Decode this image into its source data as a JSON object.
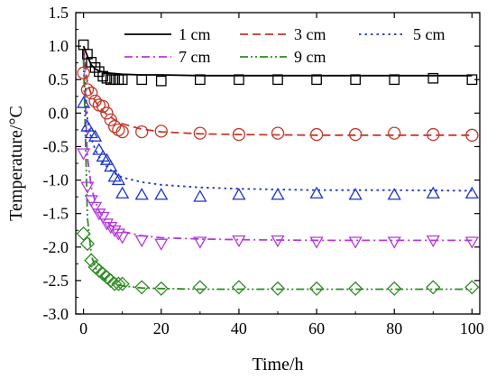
{
  "chart_data": {
    "type": "line",
    "xlabel": "Time/h",
    "ylabel": "Temperature/°C",
    "xlim": [
      -2,
      102
    ],
    "ylim": [
      -3.0,
      1.5
    ],
    "x_ticks": [
      0,
      20,
      40,
      60,
      80,
      100
    ],
    "y_ticks": [
      1.5,
      1.0,
      0.5,
      0.0,
      -0.5,
      -1.0,
      -1.5,
      -2.0,
      -2.5,
      -3.0
    ],
    "x_tick_labels": [
      "0",
      "20",
      "40",
      "60",
      "80",
      "100"
    ],
    "y_tick_labels": [
      "1.5",
      "1.0",
      "0.5",
      "0.0",
      "-0.5",
      "-1.0",
      "-1.5",
      "-2.0",
      "-2.5",
      "-3.0"
    ],
    "grid": false,
    "legend_position": "top",
    "series": [
      {
        "name": "1 cm",
        "color": "#000000",
        "line_style": "solid",
        "marker": "square",
        "fit": {
          "x": [
            0,
            1,
            2,
            3,
            4,
            5,
            6,
            8,
            10,
            15,
            20,
            30,
            40,
            60,
            80,
            100
          ],
          "y": [
            1.0,
            0.85,
            0.72,
            0.66,
            0.63,
            0.61,
            0.6,
            0.59,
            0.58,
            0.57,
            0.57,
            0.56,
            0.56,
            0.56,
            0.56,
            0.56
          ]
        },
        "points": {
          "x": [
            0,
            1,
            2,
            3,
            4,
            5,
            6,
            7,
            8,
            9,
            10,
            15,
            20,
            30,
            40,
            50,
            60,
            70,
            80,
            90,
            100
          ],
          "y": [
            1.02,
            0.88,
            0.76,
            0.68,
            0.62,
            0.55,
            0.52,
            0.5,
            0.5,
            0.5,
            0.5,
            0.5,
            0.48,
            0.5,
            0.5,
            0.5,
            0.5,
            0.5,
            0.5,
            0.52,
            0.5
          ]
        }
      },
      {
        "name": "3 cm",
        "color": "#c0392b",
        "line_style": "dashed",
        "marker": "circle",
        "fit": {
          "x": [
            0,
            1,
            2,
            3,
            4,
            5,
            6,
            8,
            10,
            15,
            20,
            30,
            40,
            60,
            80,
            100
          ],
          "y": [
            0.95,
            0.45,
            0.28,
            0.18,
            0.1,
            0.03,
            -0.02,
            -0.1,
            -0.16,
            -0.24,
            -0.28,
            -0.31,
            -0.32,
            -0.33,
            -0.33,
            -0.33
          ]
        },
        "points": {
          "x": [
            0,
            1,
            2,
            3,
            4,
            5,
            6,
            7,
            8,
            9,
            10,
            15,
            20,
            30,
            40,
            50,
            60,
            70,
            80,
            90,
            100
          ],
          "y": [
            0.6,
            0.35,
            0.3,
            0.18,
            0.12,
            0.1,
            0.0,
            -0.1,
            -0.2,
            -0.25,
            -0.28,
            -0.28,
            -0.27,
            -0.3,
            -0.32,
            -0.3,
            -0.32,
            -0.32,
            -0.3,
            -0.32,
            -0.33
          ]
        }
      },
      {
        "name": "5 cm",
        "color": "#1f35c8",
        "line_style": "dotted",
        "marker": "triangle-up",
        "fit": {
          "x": [
            0,
            1,
            2,
            3,
            4,
            5,
            6,
            8,
            10,
            15,
            20,
            30,
            40,
            60,
            80,
            100
          ],
          "y": [
            0.9,
            -0.1,
            -0.38,
            -0.54,
            -0.65,
            -0.74,
            -0.8,
            -0.9,
            -0.96,
            -1.03,
            -1.07,
            -1.11,
            -1.13,
            -1.15,
            -1.15,
            -1.16
          ]
        },
        "points": {
          "x": [
            0,
            1,
            2,
            3,
            4,
            5,
            6,
            7,
            8,
            9,
            10,
            15,
            20,
            30,
            40,
            50,
            60,
            70,
            80,
            90,
            100
          ],
          "y": [
            0.15,
            -0.2,
            -0.3,
            -0.35,
            -0.55,
            -0.65,
            -0.7,
            -0.8,
            -0.95,
            -1.0,
            -1.2,
            -1.22,
            -1.22,
            -1.25,
            -1.22,
            -1.22,
            -1.2,
            -1.22,
            -1.22,
            -1.2,
            -1.2
          ]
        }
      },
      {
        "name": "7 cm",
        "color": "#b23ad8",
        "line_style": "dash-dot",
        "marker": "triangle-down",
        "fit": {
          "x": [
            0,
            1,
            2,
            3,
            4,
            5,
            6,
            8,
            10,
            15,
            20,
            30,
            40,
            60,
            80,
            100
          ],
          "y": [
            0.85,
            -0.65,
            -1.1,
            -1.32,
            -1.46,
            -1.56,
            -1.63,
            -1.72,
            -1.77,
            -1.83,
            -1.86,
            -1.88,
            -1.89,
            -1.9,
            -1.9,
            -1.9
          ]
        },
        "points": {
          "x": [
            0,
            1,
            2,
            3,
            4,
            5,
            6,
            7,
            8,
            9,
            10,
            15,
            20,
            30,
            40,
            50,
            60,
            70,
            80,
            90,
            100
          ],
          "y": [
            -0.6,
            -1.1,
            -1.3,
            -1.4,
            -1.5,
            -1.55,
            -1.65,
            -1.7,
            -1.75,
            -1.8,
            -1.85,
            -1.9,
            -1.95,
            -1.92,
            -1.9,
            -1.9,
            -1.92,
            -1.92,
            -1.92,
            -1.9,
            -1.92
          ]
        }
      },
      {
        "name": "9 cm",
        "color": "#2e8b22",
        "line_style": "dash-dot-dot",
        "marker": "diamond",
        "fit": {
          "x": [
            0,
            1,
            2,
            3,
            4,
            5,
            6,
            8,
            10,
            15,
            20,
            30,
            40,
            60,
            80,
            100
          ],
          "y": [
            0.8,
            -1.55,
            -2.12,
            -2.3,
            -2.4,
            -2.46,
            -2.5,
            -2.55,
            -2.58,
            -2.61,
            -2.62,
            -2.63,
            -2.63,
            -2.63,
            -2.63,
            -2.63
          ]
        },
        "points": {
          "x": [
            0,
            1,
            2,
            3,
            4,
            5,
            6,
            7,
            8,
            9,
            10,
            15,
            20,
            30,
            40,
            50,
            60,
            70,
            80,
            90,
            100
          ],
          "y": [
            -1.8,
            -1.95,
            -2.2,
            -2.3,
            -2.35,
            -2.4,
            -2.45,
            -2.5,
            -2.55,
            -2.55,
            -2.55,
            -2.6,
            -2.62,
            -2.6,
            -2.6,
            -2.62,
            -2.62,
            -2.62,
            -2.62,
            -2.6,
            -2.6
          ]
        }
      }
    ]
  }
}
